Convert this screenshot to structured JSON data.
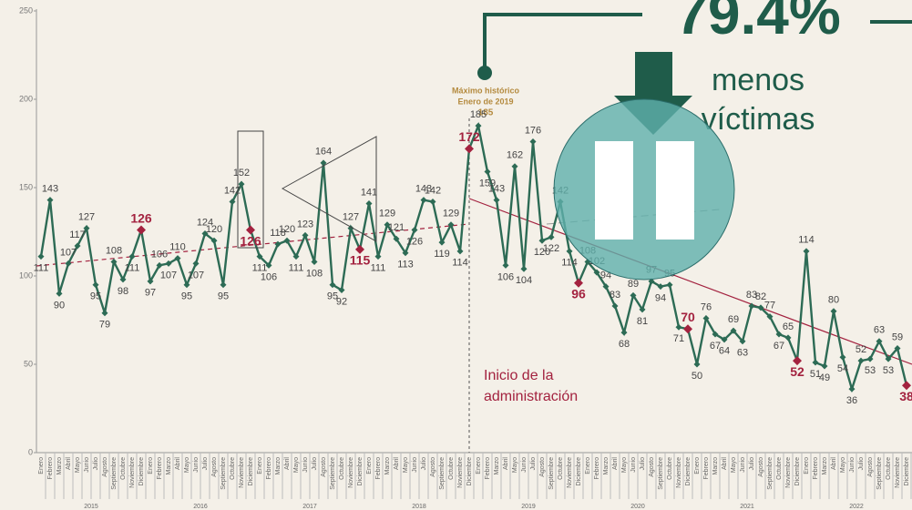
{
  "chart_data": {
    "type": "line",
    "headline": "79.4%",
    "headline_sub": [
      "menos",
      "víctimas"
    ],
    "annotation": {
      "lines": [
        "Máximo histórico",
        "Enero de 2019"
      ],
      "value": "185"
    },
    "marker_note": [
      "Inicio de la",
      "administración"
    ],
    "years": [
      "2015",
      "2016",
      "2017",
      "2018",
      "2019",
      "2020",
      "2021",
      "2022"
    ],
    "categories": [
      "Enero",
      "Febrero",
      "Marzo",
      "Abril",
      "Mayo",
      "Junio",
      "Julio",
      "Agosto",
      "Septiembre",
      "Octubre",
      "Noviembre",
      "Diciembre",
      "Enero",
      "Febrero",
      "Marzo",
      "Abril",
      "Mayo",
      "Junio",
      "Julio",
      "Agosto",
      "Septiembre",
      "Octubre",
      "Noviembre",
      "Diciembre",
      "Enero",
      "Febrero",
      "Marzo",
      "Abril",
      "Mayo",
      "Junio",
      "Julio",
      "Agosto",
      "Septiembre",
      "Octubre",
      "Noviembre",
      "Diciembre",
      "Enero",
      "Febrero",
      "Marzo",
      "Abril",
      "Mayo",
      "Junio",
      "Julio",
      "Agosto",
      "Septiembre",
      "Octubre",
      "Noviembre",
      "Diciembre",
      "Enero",
      "Febrero",
      "Marzo",
      "Abril",
      "Mayo",
      "Junio",
      "Julio",
      "Agosto",
      "Septiembre",
      "Octubre",
      "Noviembre",
      "Diciembre",
      "Enero",
      "Febrero",
      "Marzo",
      "Abril",
      "Mayo",
      "Junio",
      "Julio",
      "Agosto",
      "Septiembre",
      "Octubre",
      "Noviembre",
      "Diciembre",
      "Enero",
      "Febrero",
      "Marzo",
      "Abril",
      "Mayo",
      "Junio",
      "Julio",
      "Agosto",
      "Septiembre",
      "Octubre",
      "Noviembre",
      "Diciembre",
      "Enero",
      "Febrero",
      "Marzo",
      "Abril",
      "Mayo",
      "Junio",
      "Julio",
      "Agosto",
      "Septiembre",
      "Octubre",
      "Noviembre",
      "Diciembre"
    ],
    "series": [
      {
        "name": "Víctimas",
        "color": "#2d6b55",
        "highlight_color": "#a3223f",
        "values": [
          111,
          143,
          90,
          107,
          117,
          127,
          95,
          79,
          108,
          98,
          111,
          126,
          97,
          106,
          107,
          110,
          95,
          107,
          124,
          120,
          95,
          142,
          152,
          126,
          111,
          106,
          118,
          120,
          111,
          123,
          108,
          164,
          95,
          92,
          127,
          115,
          141,
          111,
          129,
          121,
          113,
          126,
          143,
          142,
          119,
          129,
          114,
          172,
          185,
          159,
          143,
          106,
          162,
          104,
          176,
          120,
          122,
          142,
          114,
          96,
          108,
          102,
          94,
          83,
          68,
          89,
          81,
          97,
          94,
          95,
          71,
          70,
          50,
          76,
          67,
          64,
          69,
          63,
          83,
          82,
          77,
          67,
          65,
          52,
          114,
          51,
          49,
          80,
          54,
          36,
          52,
          53,
          63,
          53,
          59,
          38
        ]
      }
    ],
    "ylim": [
      0,
      250
    ],
    "yticks": [
      0,
      50,
      100,
      150,
      200,
      250
    ]
  }
}
